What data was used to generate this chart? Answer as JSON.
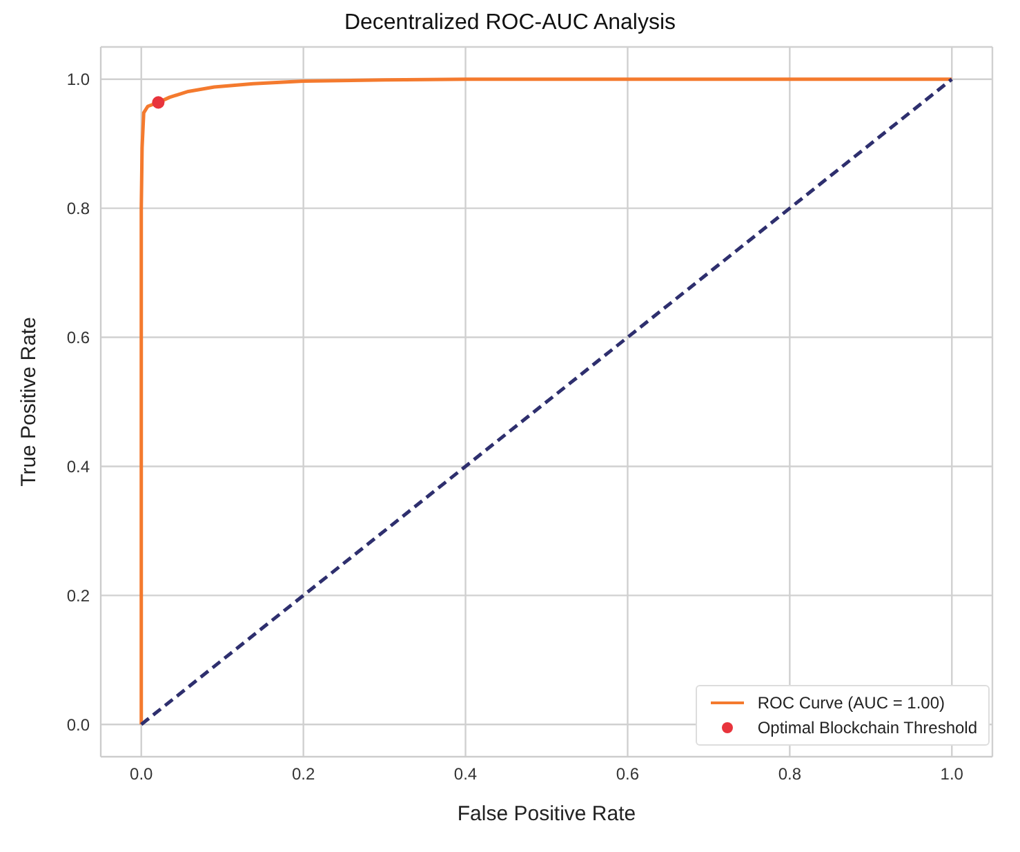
{
  "chart_data": {
    "type": "line",
    "title": "Decentralized ROC-AUC Analysis",
    "xlabel": "False Positive Rate",
    "ylabel": "True Positive Rate",
    "xlim": [
      -0.05,
      1.05
    ],
    "ylim": [
      -0.05,
      1.05
    ],
    "xticks": [
      {
        "value": 0,
        "label": "0.0"
      },
      0.2,
      0.4,
      0.6,
      0.8,
      {
        "value": 1,
        "label": "1.0"
      }
    ],
    "yticks": [
      {
        "value": 0,
        "label": "0.0"
      },
      0.2,
      0.4,
      0.6,
      0.8,
      {
        "value": 1,
        "label": "1.0"
      }
    ],
    "grid": true,
    "legend": "bottom right",
    "marker": "none",
    "series": [
      {
        "name": "ROC Curve (AUC = 1.00)",
        "color": "#f47a2e",
        "line_style": "solid",
        "x": [
          0,
          0,
          0.001,
          0.003,
          0.008,
          0.021,
          0.035,
          0.058,
          0.09,
          0.138,
          0.2,
          0.3,
          0.4,
          0.6,
          0.8,
          1.0
        ],
        "values": [
          0,
          0.8,
          0.894,
          0.948,
          0.958,
          0.964,
          0.972,
          0.981,
          0.988,
          0.993,
          0.997,
          0.999,
          1.0,
          1.0,
          1.0,
          1.0
        ]
      },
      {
        "color": "#2e2f6e",
        "line_style": "dashed",
        "x": [
          0,
          1
        ],
        "values": [
          0,
          1
        ]
      },
      {
        "name": "Optimal Blockchain Threshold",
        "type": "scatter",
        "color": "#e8343c",
        "marker": "circle",
        "x": [
          0.021
        ],
        "values": [
          0.964
        ]
      }
    ]
  }
}
